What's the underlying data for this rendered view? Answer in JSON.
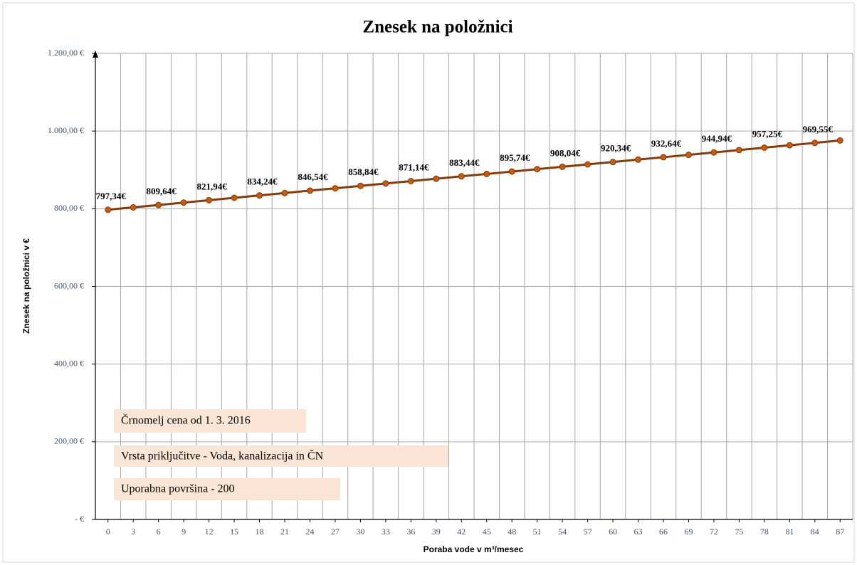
{
  "chart_data": {
    "type": "line",
    "title": "Znesek na položnici",
    "x_label": "Poraba vode v m³/mesec",
    "y_label": "Znesek na položnici v €",
    "categories": [
      0,
      3,
      6,
      9,
      12,
      15,
      18,
      21,
      24,
      27,
      30,
      33,
      36,
      39,
      42,
      45,
      48,
      51,
      54,
      57,
      60,
      63,
      66,
      69,
      72,
      75,
      78,
      81,
      84,
      87
    ],
    "series": [
      {
        "name": "Znesek",
        "color": "#843c0c",
        "values": [
          797.34,
          803.49,
          809.64,
          815.79,
          821.94,
          828.09,
          834.24,
          840.39,
          846.54,
          852.69,
          858.84,
          864.99,
          871.14,
          877.29,
          883.44,
          889.59,
          895.74,
          901.89,
          908.04,
          914.19,
          920.34,
          926.49,
          932.64,
          938.79,
          944.94,
          951.1,
          957.25,
          963.4,
          969.55,
          975.7
        ],
        "value_labels": [
          "797,34€",
          null,
          "809,64€",
          null,
          "821,94€",
          null,
          "834,24€",
          null,
          "846,54€",
          null,
          "858,84€",
          null,
          "871,14€",
          null,
          "883,44€",
          null,
          "895,74€",
          null,
          "908,04€",
          null,
          "920,34€",
          null,
          "932,64€",
          null,
          "944,94€",
          null,
          "957,25€",
          null,
          "969,55€",
          null
        ]
      }
    ],
    "ylim": [
      0,
      1200
    ],
    "yticks": [
      {
        "value": 0,
        "label": "-   €"
      },
      {
        "value": 200,
        "label": "200,00 €"
      },
      {
        "value": 400,
        "label": "400,00 €"
      },
      {
        "value": 600,
        "label": "600,00 €"
      },
      {
        "value": 800,
        "label": "800,00 €"
      },
      {
        "value": 1000,
        "label": "1.000,00 €"
      },
      {
        "value": 1200,
        "label": "1.200,00 €"
      }
    ],
    "grid": true,
    "annotations": [
      "Črnomelj cena od 1. 3. 2016",
      "Vrsta priključitve  - Voda, kanalizacija  in ČN",
      "Uporabna površina - 200"
    ]
  }
}
